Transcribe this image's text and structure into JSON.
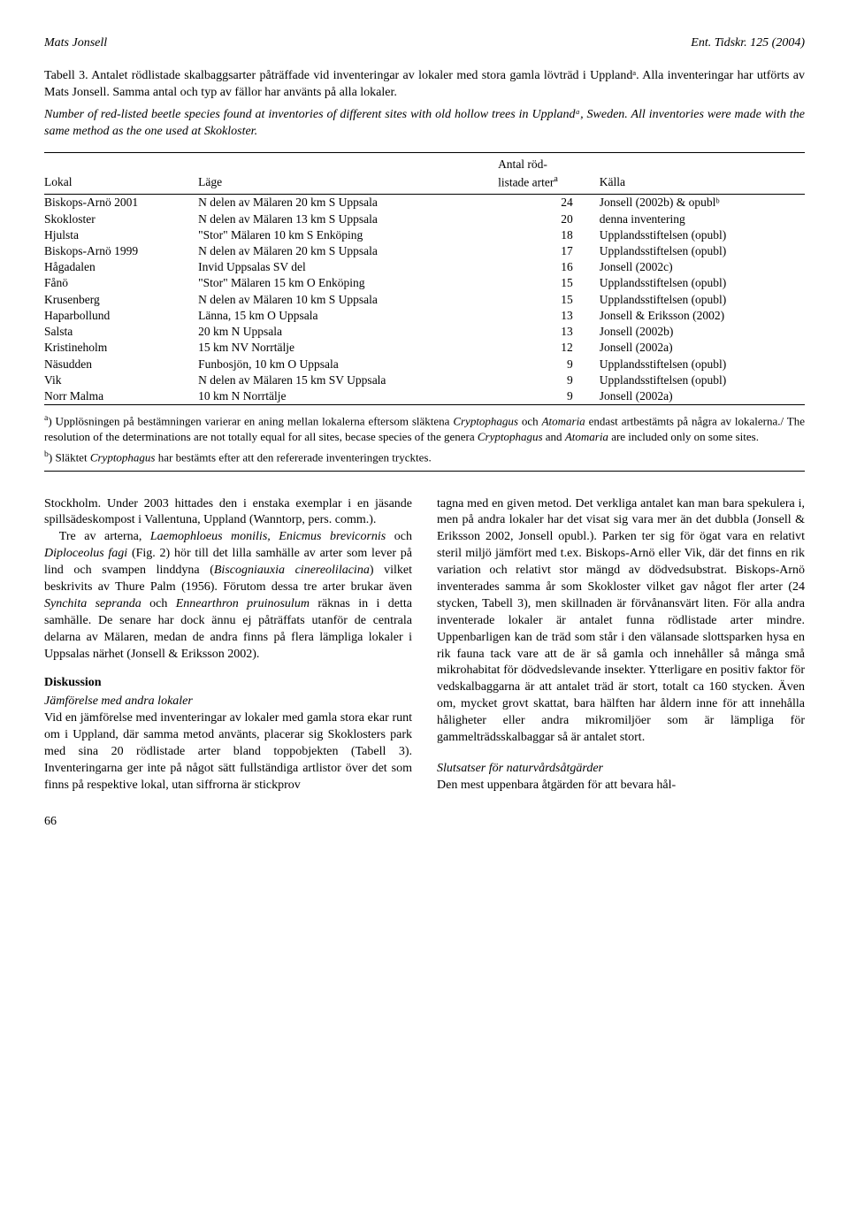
{
  "header": {
    "left": "Mats Jonsell",
    "right": "Ent. Tidskr. 125 (2004)"
  },
  "table_caption_sv": "Tabell 3. Antalet rödlistade skalbaggsarter påträffade vid inventeringar av lokaler med stora gamla lövträd i Upplandᵃ. Alla inventeringar har utförts av Mats Jonsell. Samma antal och typ av fällor har använts på alla lokaler.",
  "table_caption_en": "Number of red-listed beetle species found at inventories of different sites with old hollow trees in Upplandᵃ, Sweden. All inventories were made with the same method as the one used at Skokloster.",
  "table": {
    "columns": [
      "Lokal",
      "Läge",
      "Antal röd-\nlistade arterᵃ",
      "Källa"
    ],
    "rows": [
      [
        "Biskops-Arnö 2001",
        "N delen av Mälaren 20 km S Uppsala",
        "24",
        "Jonsell (2002b) & opublᵇ"
      ],
      [
        "Skokloster",
        "N delen av Mälaren 13 km S Uppsala",
        "20",
        "denna inventering"
      ],
      [
        "Hjulsta",
        "\"Stor\" Mälaren 10 km S Enköping",
        "18",
        "Upplandsstiftelsen (opubl)"
      ],
      [
        "Biskops-Arnö 1999",
        "N delen av Mälaren 20 km S Uppsala",
        "17",
        "Upplandsstiftelsen (opubl)"
      ],
      [
        "Hågadalen",
        "Invid Uppsalas SV del",
        "16",
        "Jonsell (2002c)"
      ],
      [
        "Fånö",
        "\"Stor\" Mälaren 15 km O Enköping",
        "15",
        "Upplandsstiftelsen (opubl)"
      ],
      [
        "Krusenberg",
        "N delen av Mälaren 10 km S Uppsala",
        "15",
        "Upplandsstiftelsen (opubl)"
      ],
      [
        "Haparbollund",
        "Länna, 15 km O Uppsala",
        "13",
        "Jonsell & Eriksson (2002)"
      ],
      [
        "Salsta",
        "20 km N Uppsala",
        "13",
        "Jonsell (2002b)"
      ],
      [
        "Kristineholm",
        "15 km NV Norrtälje",
        "12",
        "Jonsell (2002a)"
      ],
      [
        "Näsudden",
        "Funbosjön, 10 km O Uppsala",
        "9",
        "Upplandsstiftelsen (opubl)"
      ],
      [
        "Vik",
        "N delen av Mälaren 15 km SV Uppsala",
        "9",
        "Upplandsstiftelsen (opubl)"
      ],
      [
        "Norr Malma",
        "10 km N Norrtälje",
        "9",
        "Jonsell (2002a)"
      ]
    ]
  },
  "footnote_a": "ᵃ) Upplösningen på bestämningen varierar en aning mellan lokalerna eftersom släktena Cryptophagus och Atomaria endast artbestämts på några av lokalerna./ The resolution of the determinations are not totally equal for all sites, becase species of the genera Cryptophagus and Atomaria are included only on some sites.",
  "footnote_b": "ᵇ) Släktet Cryptophagus har bestämts efter att den refererade inventeringen trycktes.",
  "body": {
    "left": {
      "p1": "Stockholm. Under 2003 hittades den i enstaka exemplar i en jäsande spillsädeskompost i Vallentuna, Uppland (Wanntorp, pers. comm.).",
      "p2": "Tre av arterna, Laemophloeus monilis, Enicmus brevicornis och Diploceolus fagi (Fig. 2) hör till det lilla samhälle av arter som lever på lind och svampen linddyna (Biscogniauxia cinereolilacina) vilket beskrivits av Thure Palm (1956). Förutom dessa tre arter brukar även Synchita sepranda och Ennearthron pruinosulum räknas in i detta samhälle. De senare har dock ännu ej påträffats utanför de centrala delarna av Mälaren, medan de andra finns på flera lämpliga lokaler i Uppsalas närhet (Jonsell & Eriksson 2002).",
      "h1": "Diskussion",
      "h2": "Jämförelse med andra lokaler",
      "p3": "Vid en jämförelse med inventeringar av lokaler med gamla stora ekar runt om i Uppland, där samma metod använts, placerar sig Skoklosters park med sina 20 rödlistade arter bland toppobjekten (Tabell 3). Inventeringarna ger inte på något sätt fullständiga artlistor över det som finns på respektive lokal, utan siffrorna är stickprov"
    },
    "right": {
      "p1": "tagna med en given metod. Det verkliga antalet kan man bara spekulera i, men på andra lokaler har det visat sig vara mer än det dubbla (Jonsell & Eriksson 2002, Jonsell opubl.). Parken ter sig för ögat vara en relativt steril miljö jämfört med t.ex. Biskops-Arnö eller Vik, där det finns en rik variation och relativt stor mängd av dödvedsubstrat. Biskops-Arnö inventerades samma år som Skokloster vilket gav något fler arter (24 stycken, Tabell 3), men skillnaden är förvånansvärt liten. För alla andra inventerade lokaler är antalet funna rödlistade arter mindre. Uppenbarligen kan de träd som står i den välansade slottsparken hysa en rik fauna tack vare att de är så gamla och innehåller så många små mikrohabitat för dödvedslevande insekter. Ytterligare en positiv faktor för vedskalbaggarna är att antalet träd är stort, totalt ca 160 stycken. Även om, mycket grovt skattat, bara hälften har åldern inne för att innehålla håligheter eller andra mikromiljöer som är lämpliga för gammelträdsskalbaggar så är antalet stort.",
      "h2": "Slutsatser för naturvårdsåtgärder",
      "p2": "Den mest uppenbara åtgärden för att bevara hål-"
    }
  },
  "pagenum": "66"
}
